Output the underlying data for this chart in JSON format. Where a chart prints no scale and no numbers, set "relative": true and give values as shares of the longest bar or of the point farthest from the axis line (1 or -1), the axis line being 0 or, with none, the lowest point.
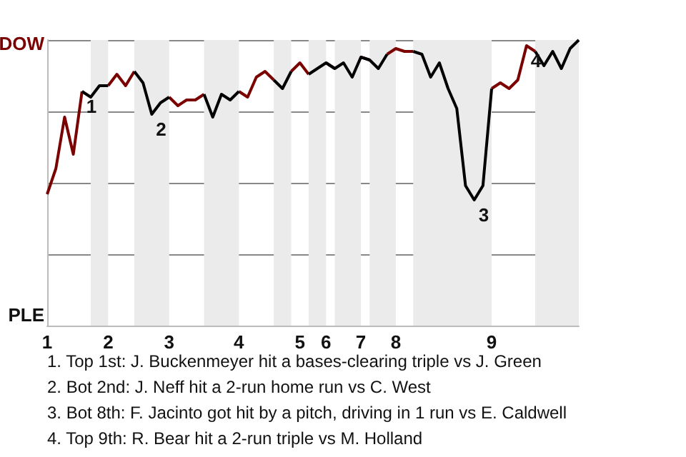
{
  "chart_data": {
    "type": "line",
    "relative": true,
    "categories": [
      "1",
      null,
      null,
      null,
      null,
      null,
      null,
      "2",
      null,
      null,
      null,
      null,
      null,
      null,
      "3",
      null,
      null,
      null,
      null,
      null,
      null,
      null,
      "4",
      null,
      null,
      null,
      null,
      null,
      null,
      "5",
      null,
      null,
      "6",
      null,
      null,
      null,
      "7",
      null,
      null,
      null,
      "8",
      null,
      null,
      null,
      null,
      null,
      null,
      null,
      null,
      null,
      null,
      "9",
      null,
      null,
      null,
      null,
      null,
      null,
      null,
      null,
      null,
      null
    ],
    "series": [
      {
        "color": "#7b0000",
        "values": [
          0.46,
          0.55,
          0.73,
          0.6,
          0.82,
          null,
          null,
          0.84,
          0.88,
          0.84,
          0.89,
          null,
          null,
          null,
          0.8,
          0.77,
          0.79,
          0.79,
          0.81,
          null,
          null,
          null,
          0.82,
          0.8,
          0.87,
          0.89,
          0.86,
          null,
          0.89,
          0.92,
          0.88,
          null,
          0.92,
          0.9,
          null,
          null,
          0.94,
          0.93,
          null,
          0.95,
          0.97,
          0.96,
          0.96,
          null,
          null,
          null,
          null,
          null,
          null,
          null,
          null,
          0.83,
          0.85,
          0.83,
          0.86,
          0.98,
          0.96,
          null,
          null,
          null,
          null,
          null
        ]
      },
      {
        "color": "#000000",
        "values": [
          null,
          null,
          null,
          null,
          0.82,
          0.8,
          0.84,
          0.84,
          null,
          null,
          0.89,
          0.85,
          0.74,
          0.78,
          0.8,
          null,
          null,
          null,
          0.81,
          0.73,
          0.81,
          0.79,
          0.82,
          null,
          null,
          null,
          0.86,
          0.83,
          0.89,
          null,
          0.88,
          0.9,
          0.92,
          0.9,
          0.92,
          0.87,
          0.94,
          0.93,
          0.9,
          0.95,
          null,
          null,
          0.96,
          0.95,
          0.87,
          0.92,
          0.83,
          0.76,
          0.49,
          0.44,
          0.49,
          0.83,
          null,
          null,
          null,
          null,
          0.96,
          0.91,
          0.96,
          0.9,
          0.97,
          1.0
        ]
      }
    ],
    "grid": "y",
    "marker": "none",
    "annotations": [
      "DOW",
      "PLE",
      {
        "text": "1",
        "y": 0.82
      },
      {
        "text": "2",
        "y": 0.74
      },
      {
        "text": "3",
        "y": 0.44
      },
      {
        "text": "4",
        "y": 0.98
      },
      "1. Top 1st: J. Buckenmeyer hit a bases-clearing triple vs J. Green",
      "2. Bot 2nd: J. Neff hit a 2-run home run vs C. West",
      "3. Bot 8th: F. Jacinto got hit by a pitch, driving in 1 run vs E. Caldwell",
      "4. Top 9th: R. Bear hit a 2-run triple vs M. Holland"
    ]
  }
}
